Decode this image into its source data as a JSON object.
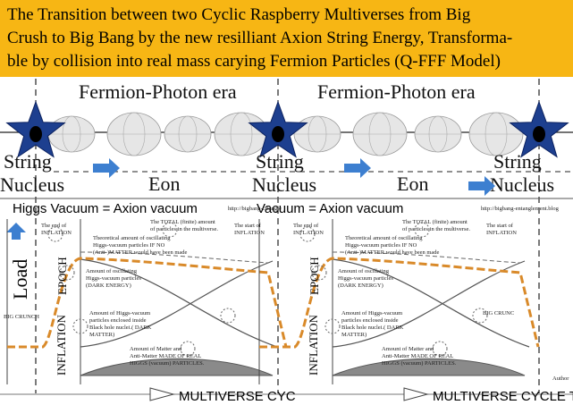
{
  "title": {
    "lines": [
      "The Transition between two Cyclic Raspberry Multiverses from Big",
      "Crush to Big Bang by the new resilliant Axion String Energy, Transforma-",
      "ble by collision into real mass carying Fermion Particles (Q-FFF Model)"
    ]
  },
  "top_band": {
    "era_label": "Fermion-Photon era",
    "string_label": [
      "String",
      "Nucleus"
    ],
    "eon_label": "Eon"
  },
  "panels": {
    "vacuum_label": [
      "Higgs Vacuum = Axion vacuum",
      "Vacuum = Axion vacuum"
    ],
    "urls": [
      "http://bigbang-cstangle",
      "http://bigbang-entanglement.blog"
    ],
    "load_label": "Load",
    "epoch_label": "EPOCH",
    "inflation_label": "INFLATION",
    "end_inflation": [
      "The end of",
      "INFLATION"
    ],
    "total": [
      "The TOTAL (finite) amount",
      "of particles in the multiverse."
    ],
    "start_inflation": [
      "The start of",
      "INFLATION"
    ],
    "theoretical": [
      "Theoretical amount of oscillating",
      "Higgs-vacuum particles IF NO",
      "(Anti-)MATTER would have been made"
    ],
    "dark_energy": [
      "Amount of oscillating",
      "Higgs-vacuum particles",
      "(DARK ENERGY)"
    ],
    "dark_matter": [
      "Amount of Higgs-vacuum",
      "particles enclosed inside",
      "Black hole nuclei.( DARK",
      "MATTER)"
    ],
    "matter": [
      "Amount of Matter and",
      "Anti-Matter MADE OF REAL",
      "HIGGS (vacuum) PARTICLES."
    ],
    "big_crunch": [
      "BIG CRUNCH",
      "BIG CRUNC"
    ],
    "cycle": [
      "MULTIVERSE CYC",
      "MULTIVERSE CYCLE T"
    ],
    "author": "Author"
  }
}
